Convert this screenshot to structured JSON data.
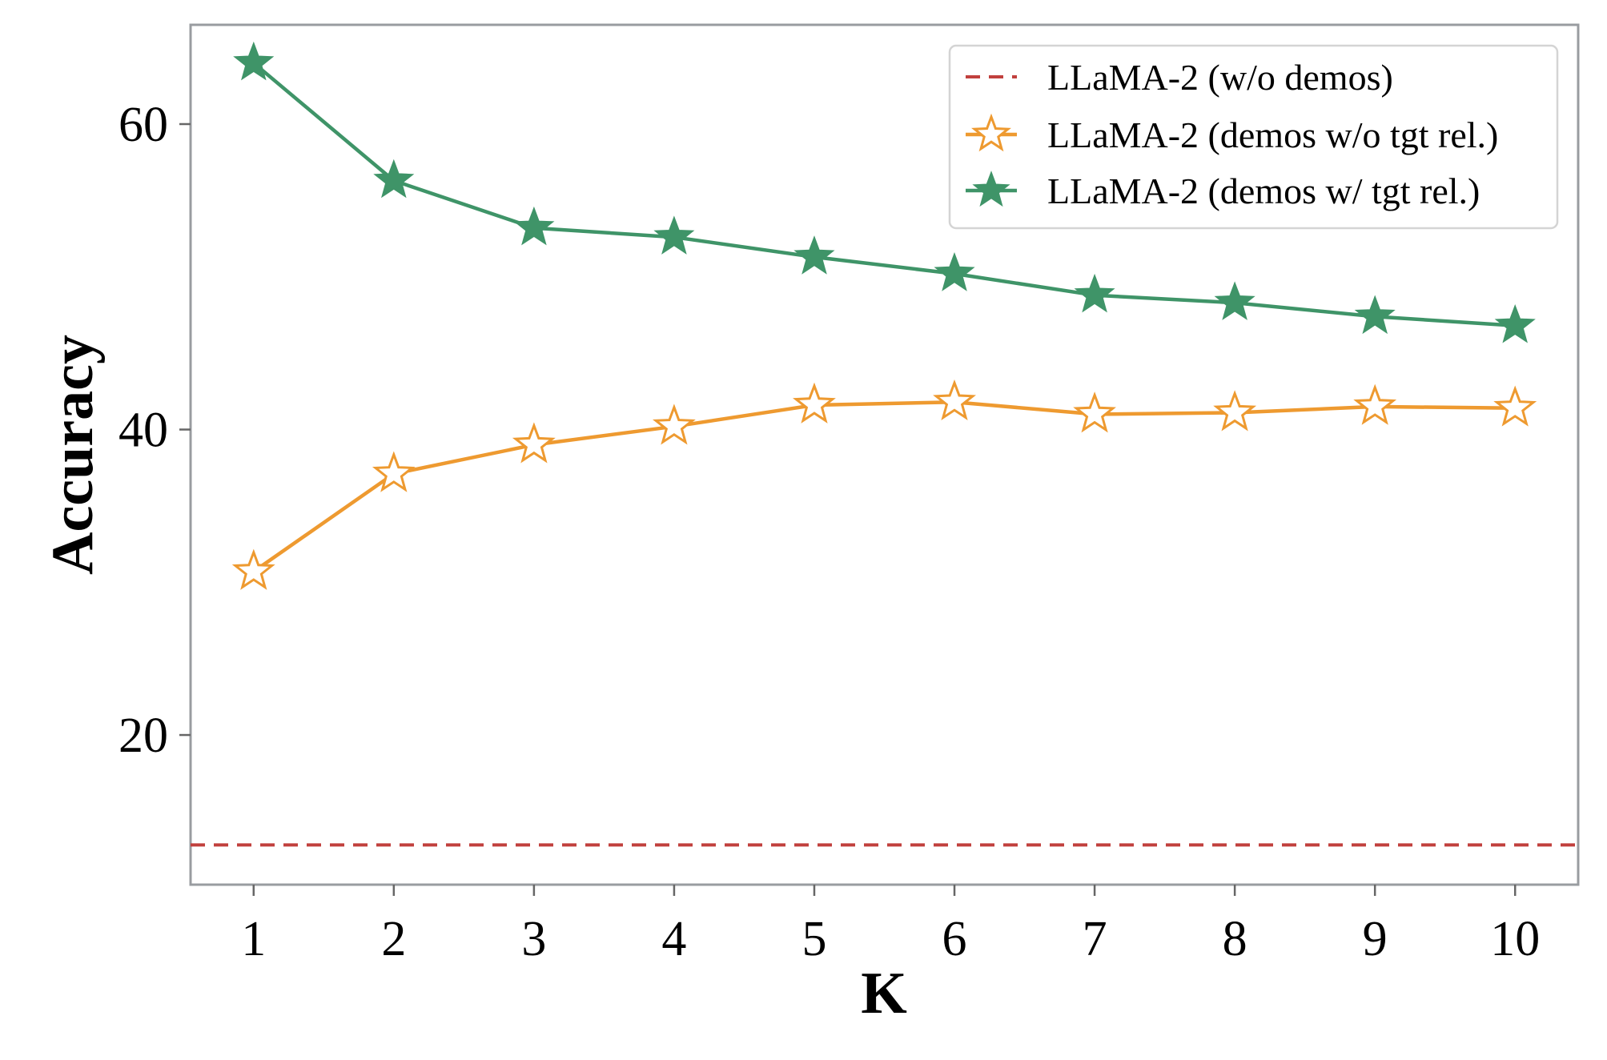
{
  "chart_data": {
    "type": "line",
    "title": "",
    "xlabel": "K",
    "ylabel": "Accuracy",
    "xlim": [
      0.55,
      10.45
    ],
    "ylim": [
      10.2,
      66.5
    ],
    "x": [
      1,
      2,
      3,
      4,
      5,
      6,
      7,
      8,
      9,
      10
    ],
    "xticks": [
      1,
      2,
      3,
      4,
      5,
      6,
      7,
      8,
      9,
      10
    ],
    "yticks": [
      20,
      40,
      60
    ],
    "grid": false,
    "legend_position": "top-right",
    "baseline": {
      "name": "LLaMA-2 (w/o demos)",
      "value": 12.8,
      "color": "#c1403d",
      "style": "dashed"
    },
    "series": [
      {
        "name": "LLaMA-2 (demos w/o tgt rel.)",
        "values": [
          30.7,
          37.1,
          39.0,
          40.2,
          41.6,
          41.8,
          41.0,
          41.1,
          41.5,
          41.4
        ],
        "color": "#ee9a30",
        "marker": "star-open"
      },
      {
        "name": "LLaMA-2 (demos w/ tgt rel.)",
        "values": [
          64.0,
          56.3,
          53.2,
          52.6,
          51.3,
          50.2,
          48.8,
          48.3,
          47.4,
          46.8
        ],
        "color": "#3f9468",
        "marker": "star-filled"
      }
    ]
  }
}
